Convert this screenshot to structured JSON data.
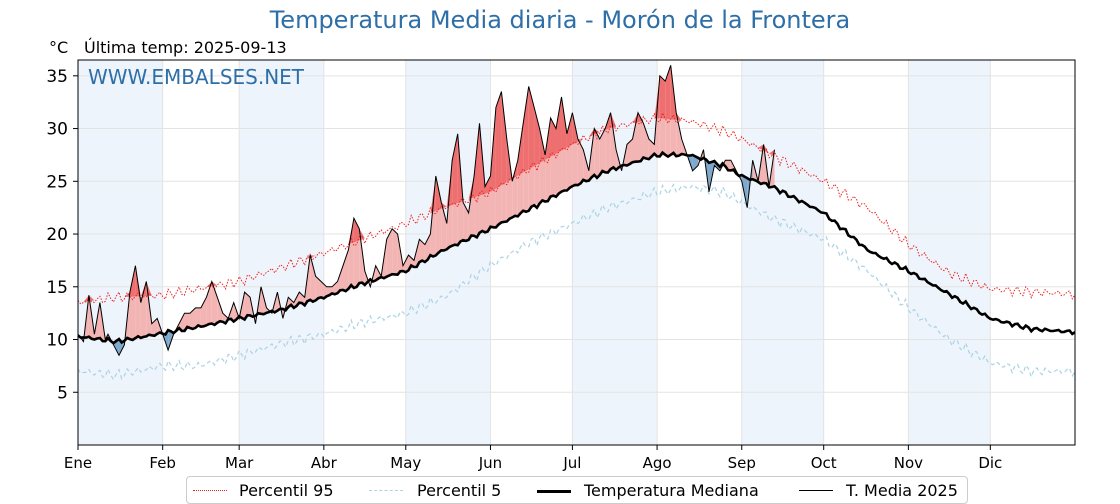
{
  "header": {
    "title": "Temperatura Media diaria - Morón de la Frontera",
    "unit": "°C",
    "last_temp": "Última temp: 2025-09-13"
  },
  "watermark": "WWW.EMBALSES.NET",
  "colors": {
    "title": "#2e6fa7",
    "p95": "#ee2222",
    "p5": "#a9d3e6",
    "median": "#000000",
    "mean2025": "#000000",
    "above_fill": "#f3b4b4",
    "above_p95_fill": "#ee6f6f",
    "below_fill": "#7fa9cc",
    "month_band": "#eef4fb"
  },
  "legend": [
    {
      "id": "p95",
      "label": "Percentil 95",
      "style": "dotted-red"
    },
    {
      "id": "p5",
      "label": "Percentil 5",
      "style": "dashed-lightblue"
    },
    {
      "id": "median",
      "label": "Temperatura Mediana",
      "style": "thick-black"
    },
    {
      "id": "mean2025",
      "label": "T. Media 2025",
      "style": "thin-black"
    }
  ],
  "chart_data": {
    "type": "line",
    "ylim": [
      0,
      36.5
    ],
    "yticks": [
      5,
      10,
      15,
      20,
      25,
      30,
      35
    ],
    "xlim_day_of_year": [
      1,
      366
    ],
    "grid": true,
    "legend_position": "bottom-center",
    "x_ticks": [
      {
        "label": "Ene",
        "day": 1
      },
      {
        "label": "Feb",
        "day": 32
      },
      {
        "label": "Mar",
        "day": 60
      },
      {
        "label": "Abr",
        "day": 91
      },
      {
        "label": "May",
        "day": 121
      },
      {
        "label": "Jun",
        "day": 152
      },
      {
        "label": "Jul",
        "day": 182
      },
      {
        "label": "Ago",
        "day": 213
      },
      {
        "label": "Sep",
        "day": 244
      },
      {
        "label": "Oct",
        "day": 274
      },
      {
        "label": "Nov",
        "day": 305
      },
      {
        "label": "Dic",
        "day": 335
      }
    ],
    "series": [
      {
        "name": "Percentil 95",
        "x": [
          1,
          15,
          32,
          45,
          60,
          75,
          91,
          105,
          121,
          135,
          152,
          165,
          182,
          195,
          213,
          225,
          237,
          244,
          255,
          274,
          290,
          305,
          320,
          335,
          350,
          366
        ],
        "values": [
          13.5,
          14,
          14.2,
          14.8,
          15.5,
          16.8,
          18.2,
          19.5,
          21,
          22.5,
          24,
          26,
          28.5,
          30,
          31,
          30.7,
          29.8,
          29,
          27.5,
          25,
          22.5,
          19,
          16.3,
          14.8,
          14.5,
          14.3
        ]
      },
      {
        "name": "Percentil 5",
        "x": [
          1,
          15,
          32,
          45,
          60,
          75,
          91,
          105,
          121,
          135,
          152,
          165,
          182,
          195,
          213,
          225,
          237,
          244,
          255,
          274,
          290,
          305,
          320,
          335,
          350,
          366
        ],
        "values": [
          7,
          6.6,
          7.5,
          7.5,
          8.5,
          9.6,
          10.5,
          11.6,
          12.5,
          14,
          17,
          19,
          21,
          22.5,
          24,
          24.5,
          24,
          23,
          21.5,
          19.5,
          16.5,
          13,
          10,
          7.8,
          7,
          7
        ]
      },
      {
        "name": "Temperatura Mediana",
        "x": [
          1,
          15,
          32,
          45,
          60,
          75,
          91,
          105,
          121,
          135,
          152,
          165,
          182,
          195,
          213,
          225,
          237,
          244,
          255,
          274,
          290,
          305,
          320,
          335,
          350,
          366
        ],
        "values": [
          10.3,
          9.8,
          10.6,
          11.2,
          12,
          12.8,
          14,
          15.3,
          16.5,
          18.5,
          20.5,
          22.2,
          24.5,
          26,
          27.5,
          27.5,
          26.5,
          25.5,
          24.5,
          22,
          18.5,
          16.5,
          14.3,
          12,
          11,
          10.7
        ]
      },
      {
        "name": "T. Media 2025",
        "x": [
          1,
          3,
          5,
          7,
          9,
          11,
          12,
          14,
          16,
          18,
          20,
          22,
          24,
          26,
          28,
          30,
          32,
          34,
          36,
          38,
          40,
          42,
          44,
          46,
          48,
          50,
          52,
          54,
          56,
          58,
          60,
          62,
          64,
          66,
          68,
          70,
          72,
          74,
          76,
          78,
          80,
          82,
          84,
          86,
          88,
          90,
          92,
          94,
          96,
          98,
          100,
          102,
          104,
          106,
          108,
          110,
          112,
          114,
          116,
          118,
          120,
          122,
          124,
          126,
          128,
          130,
          132,
          134,
          136,
          138,
          140,
          142,
          144,
          146,
          148,
          150,
          152,
          154,
          156,
          158,
          160,
          162,
          164,
          166,
          168,
          170,
          172,
          174,
          176,
          178,
          180,
          182,
          184,
          186,
          188,
          190,
          192,
          194,
          196,
          198,
          200,
          202,
          204,
          206,
          208,
          210,
          212,
          214,
          216,
          218,
          220,
          222,
          224,
          226,
          228,
          230,
          232,
          234,
          236,
          238,
          240,
          242,
          244,
          246,
          248,
          250,
          252,
          254,
          256
        ],
        "values": [
          10.5,
          9.8,
          14.2,
          10.5,
          13.5,
          10,
          10.5,
          9.5,
          8.5,
          9.5,
          14.5,
          17,
          13.5,
          15.5,
          11.5,
          12,
          10.5,
          9,
          10.5,
          11.5,
          12.5,
          12.5,
          13,
          13,
          14,
          15.5,
          14,
          12.5,
          12,
          13.5,
          12,
          14.5,
          14,
          11.5,
          15,
          13,
          12.5,
          14.5,
          12,
          14,
          13.5,
          14.5,
          14,
          18,
          16,
          15.5,
          15,
          15,
          15.5,
          17,
          18.5,
          21.5,
          20.5,
          16.5,
          15,
          17,
          16,
          19.5,
          20.5,
          20,
          17,
          18,
          17.5,
          19.5,
          19,
          20,
          25.5,
          23,
          21,
          27,
          29.5,
          23,
          22,
          25.5,
          30.5,
          24.5,
          25.5,
          32,
          33.5,
          29,
          25,
          27,
          30.5,
          34,
          32,
          30,
          27.5,
          31,
          30,
          33,
          29.5,
          31.5,
          29,
          28,
          26,
          30,
          29,
          30,
          31.5,
          28,
          26,
          28.5,
          29,
          31.5,
          30.5,
          29,
          28.5,
          35,
          34.5,
          36,
          31.5,
          29,
          27.5,
          26,
          26.5,
          28,
          24,
          26.5,
          26,
          27,
          27,
          26,
          25,
          22.5,
          27,
          25,
          28.5,
          24.5,
          28
        ]
      }
    ]
  }
}
